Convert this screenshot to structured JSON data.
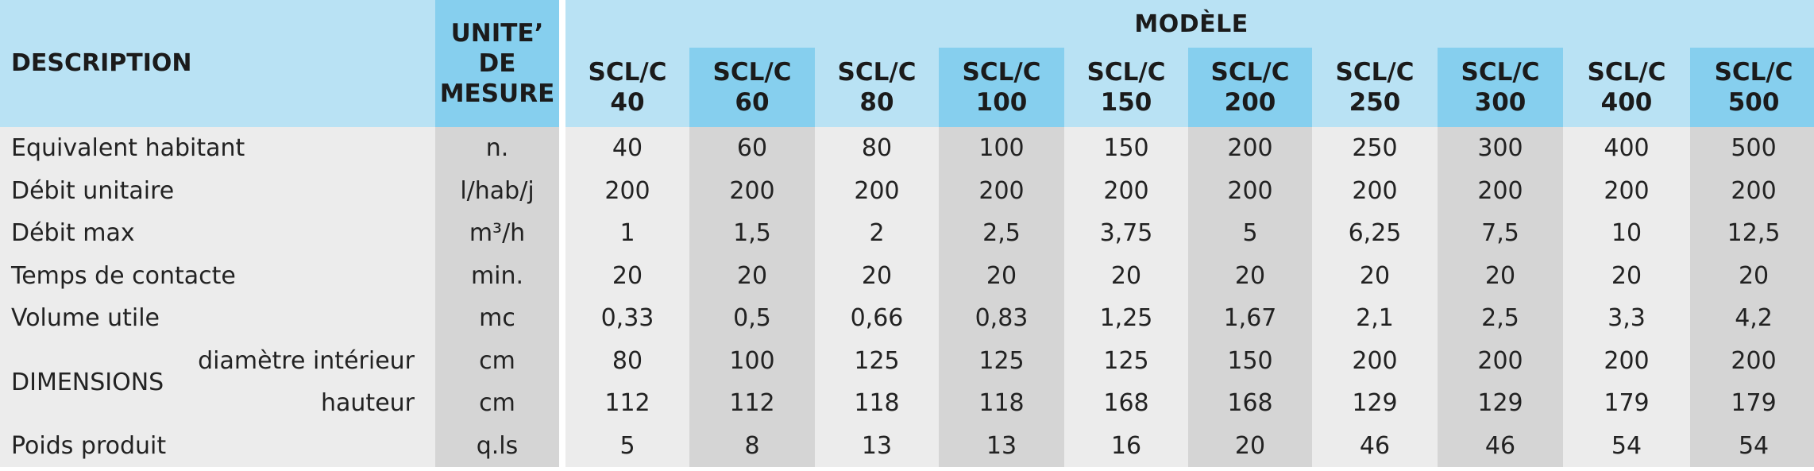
{
  "header": {
    "description": "DESCRIPTION",
    "unit_line1": "UNITE’",
    "unit_line2": "DE",
    "unit_line3": "MESURE",
    "modele": "MODÈLE",
    "models": [
      {
        "line1": "SCL/C",
        "line2": "40"
      },
      {
        "line1": "SCL/C",
        "line2": "60"
      },
      {
        "line1": "SCL/C",
        "line2": "80"
      },
      {
        "line1": "SCL/C",
        "line2": "100"
      },
      {
        "line1": "SCL/C",
        "line2": "150"
      },
      {
        "line1": "SCL/C",
        "line2": "200"
      },
      {
        "line1": "SCL/C",
        "line2": "250"
      },
      {
        "line1": "SCL/C",
        "line2": "300"
      },
      {
        "line1": "SCL/C",
        "line2": "400"
      },
      {
        "line1": "SCL/C",
        "line2": "500"
      }
    ]
  },
  "rows": [
    {
      "label": "Equivalent habitant",
      "unit": "n.",
      "values": [
        "40",
        "60",
        "80",
        "100",
        "150",
        "200",
        "250",
        "300",
        "400",
        "500"
      ]
    },
    {
      "label": "Débit unitaire",
      "unit": "l/hab/j",
      "values": [
        "200",
        "200",
        "200",
        "200",
        "200",
        "200",
        "200",
        "200",
        "200",
        "200"
      ]
    },
    {
      "label": "Débit max",
      "unit": "m³/h",
      "values": [
        "1",
        "1,5",
        "2",
        "2,5",
        "3,75",
        "5",
        "6,25",
        "7,5",
        "10",
        "12,5"
      ]
    },
    {
      "label": "Temps de contacte",
      "unit": "min.",
      "values": [
        "20",
        "20",
        "20",
        "20",
        "20",
        "20",
        "20",
        "20",
        "20",
        "20"
      ]
    },
    {
      "label": "Volume utile",
      "unit": "mc",
      "values": [
        "0,33",
        "0,5",
        "0,66",
        "0,83",
        "1,25",
        "1,67",
        "2,1",
        "2,5",
        "3,3",
        "4,2"
      ]
    },
    {
      "group": "DIMENSIONS",
      "label": "diamètre intérieur",
      "unit": "cm",
      "values": [
        "80",
        "100",
        "125",
        "125",
        "125",
        "150",
        "200",
        "200",
        "200",
        "200"
      ]
    },
    {
      "group": "DIMENSIONS",
      "label": "hauteur",
      "unit": "cm",
      "values": [
        "112",
        "112",
        "118",
        "118",
        "168",
        "168",
        "129",
        "129",
        "179",
        "179"
      ]
    },
    {
      "label": "Poids produit",
      "unit": "q.ls",
      "values": [
        "5",
        "8",
        "13",
        "13",
        "16",
        "20",
        "46",
        "46",
        "54",
        "54"
      ]
    }
  ],
  "colors": {
    "header_light": "#b9e2f4",
    "header_dark": "#86cfee",
    "row_light": "#ececec",
    "row_dark": "#d5d5d5",
    "separator": "#ffffff"
  }
}
